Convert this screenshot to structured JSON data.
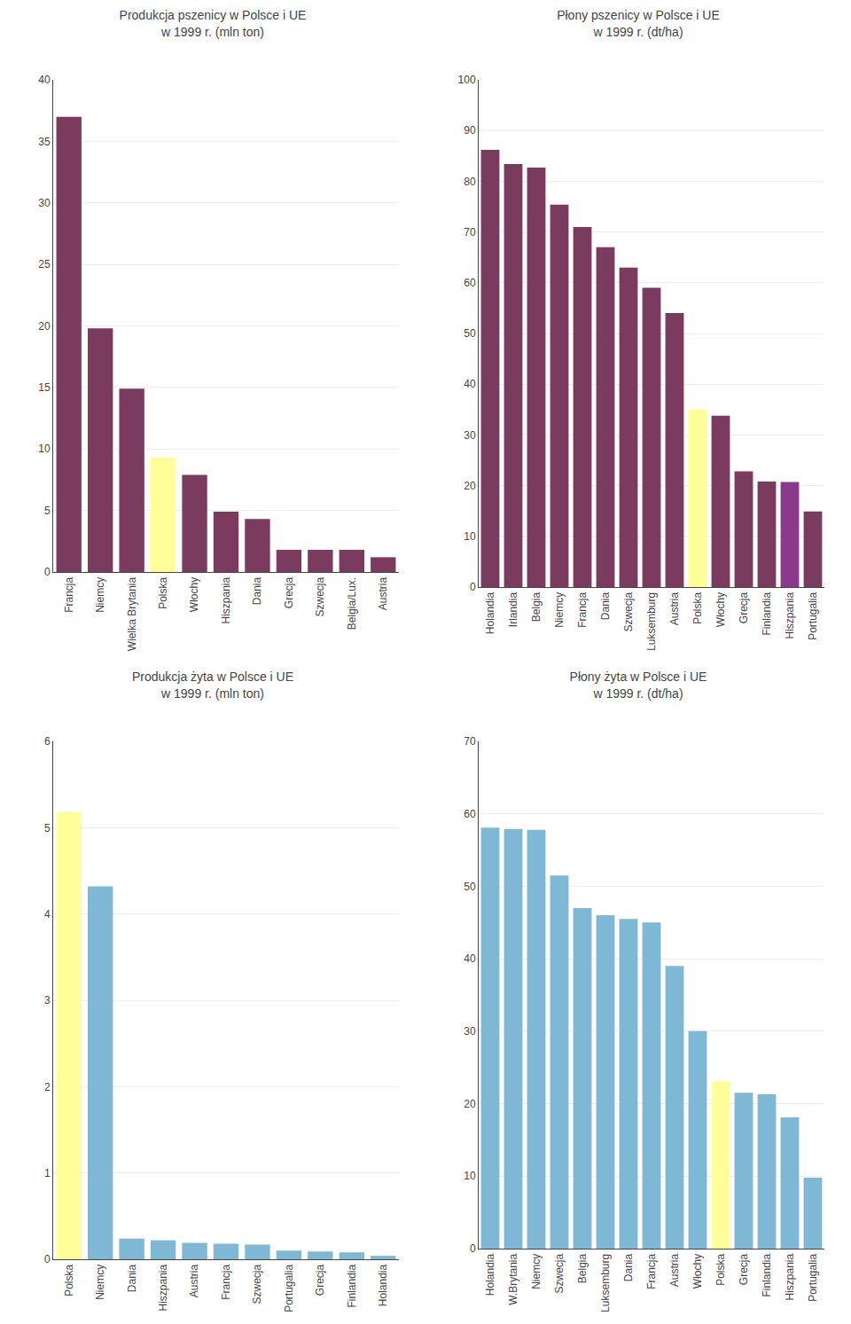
{
  "chart_data": [
    {
      "type": "bar",
      "title": "Produkcja pszenicy w Polsce i UE",
      "subtitle": "w 1999 r. (mln ton)",
      "categories": [
        "Francja",
        "Niemcy",
        "Wielka Brytania",
        "Polska",
        "Włochy",
        "Hiszpania",
        "Dania",
        "Grecja",
        "Szwecja",
        "Belgia/Lux.",
        "Austria"
      ],
      "values": [
        37.0,
        19.8,
        14.9,
        9.3,
        7.9,
        4.9,
        4.3,
        1.8,
        1.8,
        1.8,
        1.2
      ],
      "colors": [
        "#7B3B5E",
        "#7B3B5E",
        "#7B3B5E",
        "#FFFF99",
        "#7B3B5E",
        "#7B3B5E",
        "#7B3B5E",
        "#7B3B5E",
        "#7B3B5E",
        "#7B3B5E",
        "#7B3B5E"
      ],
      "ylim": [
        0,
        40
      ],
      "yticks": [
        0,
        5,
        10,
        15,
        20,
        25,
        30,
        35,
        40
      ],
      "grid": true
    },
    {
      "type": "bar",
      "title": "Płony pszenicy w Polsce i UE",
      "subtitle": "w 1999 r. (dt/ha)",
      "categories": [
        "Holandia",
        "Irlandia",
        "Belgia",
        "Niemcy",
        "Francja",
        "Dania",
        "Szwecja",
        "Luksemburg",
        "Austria",
        "Polska",
        "Włochy",
        "Grecja",
        "Finlandia",
        "Hiszpania",
        "Portugalia"
      ],
      "values": [
        86.2,
        83.4,
        82.7,
        75.4,
        71.0,
        67.0,
        63.0,
        59.0,
        54.0,
        35.0,
        33.8,
        22.8,
        20.8,
        20.7,
        14.9
      ],
      "colors": [
        "#7B3B5E",
        "#7B3B5E",
        "#7B3B5E",
        "#7B3B5E",
        "#7B3B5E",
        "#7B3B5E",
        "#7B3B5E",
        "#7B3B5E",
        "#7B3B5E",
        "#FFFF99",
        "#7B3B5E",
        "#7B3B5E",
        "#7B3B5E",
        "#8B3A8B",
        "#7B3B5E"
      ],
      "ylim": [
        0,
        100
      ],
      "yticks": [
        0,
        10,
        20,
        30,
        40,
        50,
        60,
        70,
        80,
        90,
        100
      ],
      "grid": true
    },
    {
      "type": "bar",
      "title": "Produkcja żyta w Polsce i UE",
      "subtitle": "w 1999 r. (mln ton)",
      "categories": [
        "Polska",
        "Niemcy",
        "Dania",
        "Hiszpania",
        "Austria",
        "Francja",
        "Szwecja",
        "Portugalia",
        "Grecja",
        "Finlandia",
        "Holandia"
      ],
      "values": [
        5.18,
        4.32,
        0.24,
        0.22,
        0.19,
        0.18,
        0.17,
        0.1,
        0.09,
        0.08,
        0.04
      ],
      "colors": [
        "#FFFF99",
        "#7EB8D4",
        "#7EB8D4",
        "#7EB8D4",
        "#7EB8D4",
        "#7EB8D4",
        "#7EB8D4",
        "#7EB8D4",
        "#7EB8D4",
        "#7EB8D4",
        "#7EB8D4"
      ],
      "ylim": [
        0,
        6
      ],
      "yticks": [
        0,
        1,
        2,
        3,
        4,
        5,
        6
      ],
      "grid": true
    },
    {
      "type": "bar",
      "title": "Płony żyta w Polsce i UE",
      "subtitle": "w 1999 r. (dt/ha)",
      "categories": [
        "Holandia",
        "W.Brytania",
        "Niemcy",
        "Szwecja",
        "Belgia",
        "Luksemburg",
        "Dania",
        "Francja",
        "Austria",
        "Włochy",
        "Polska",
        "Grecja",
        "Finlandia",
        "Hiszpania",
        "Portugalia"
      ],
      "values": [
        58.1,
        57.9,
        57.8,
        51.5,
        47.0,
        46.0,
        45.5,
        45.0,
        39.0,
        30.0,
        23.1,
        21.5,
        21.3,
        18.1,
        9.8
      ],
      "colors": [
        "#7EB8D4",
        "#7EB8D4",
        "#7EB8D4",
        "#7EB8D4",
        "#7EB8D4",
        "#7EB8D4",
        "#7EB8D4",
        "#7EB8D4",
        "#7EB8D4",
        "#7EB8D4",
        "#FFFF99",
        "#7EB8D4",
        "#7EB8D4",
        "#7EB8D4",
        "#7EB8D4"
      ],
      "ylim": [
        0,
        70
      ],
      "yticks": [
        0,
        10,
        20,
        30,
        40,
        50,
        60,
        70
      ],
      "grid": true
    }
  ]
}
